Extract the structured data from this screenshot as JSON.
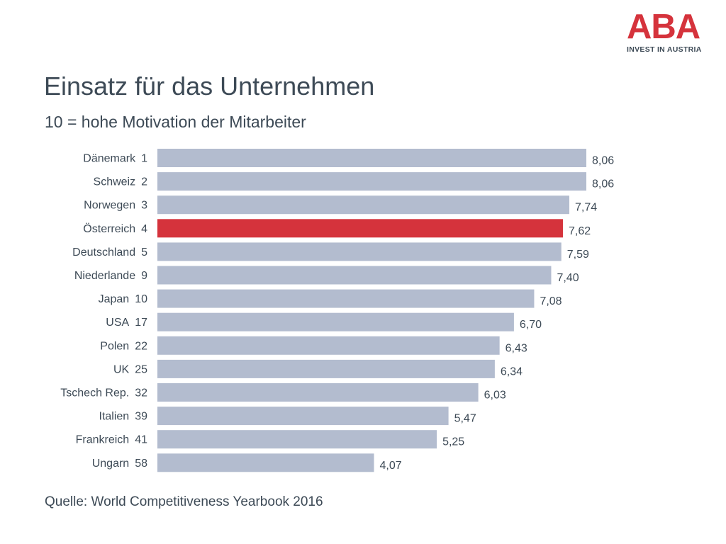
{
  "logo": {
    "word": "ABA",
    "tagline": "INVEST IN AUSTRIA"
  },
  "title": "Einsatz für das Unternehmen",
  "subtitle": "10 = hohe Motivation der Mitarbeiter",
  "source": "Quelle: World Competitiveness Yearbook 2016",
  "colors": {
    "bar": "#b3bccf",
    "highlight": "#d5333c",
    "text": "#3d4a56"
  },
  "chart_data": {
    "type": "bar",
    "orientation": "horizontal",
    "categories": [
      "Dänemark",
      "Schweiz",
      "Norwegen",
      "Österreich",
      "Deutschland",
      "Niederlande",
      "Japan",
      "USA",
      "Polen",
      "UK",
      "Tschech Rep.",
      "Italien",
      "Frankreich",
      "Ungarn"
    ],
    "ranks": [
      "1",
      "2",
      "3",
      "4",
      "5",
      "9",
      "10",
      "17",
      "22",
      "25",
      "32",
      "39",
      "41",
      "58"
    ],
    "values": [
      8.06,
      8.06,
      7.74,
      7.62,
      7.59,
      7.4,
      7.08,
      6.7,
      6.43,
      6.34,
      6.03,
      5.47,
      5.25,
      4.07
    ],
    "value_labels": [
      "8,06",
      "8,06",
      "7,74",
      "7,62",
      "7,59",
      "7,40",
      "7,08",
      "6,70",
      "6,43",
      "6,34",
      "6,03",
      "5,47",
      "5,25",
      "4,07"
    ],
    "highlight": "Österreich",
    "xlim": [
      0,
      8.06
    ],
    "grid": false,
    "legend": "none",
    "title": "Einsatz für das Unternehmen",
    "subtitle": "10 = hohe Motivation der Mitarbeiter"
  }
}
